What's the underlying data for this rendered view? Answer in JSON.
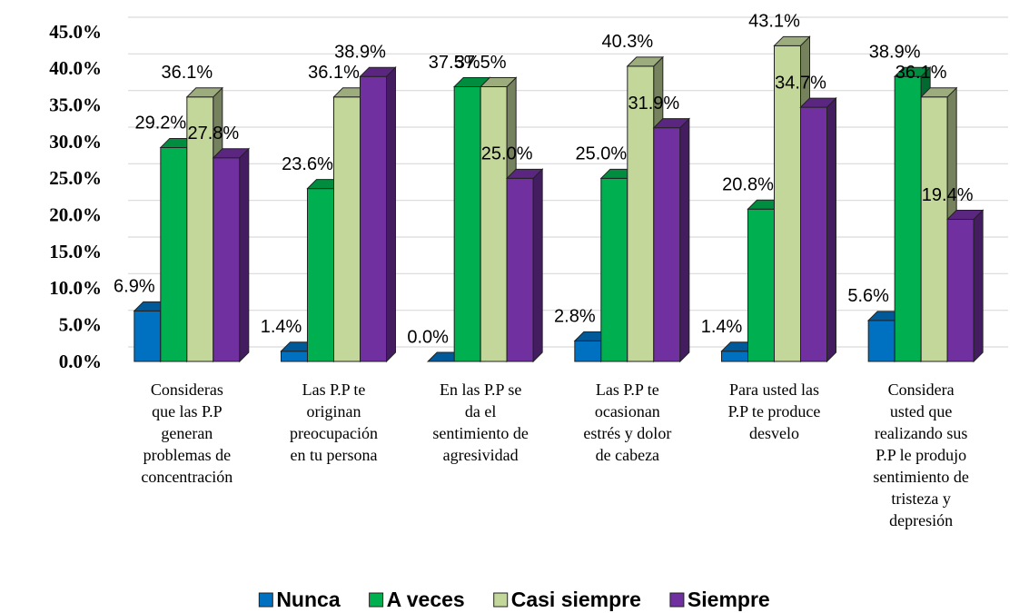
{
  "chart_data": {
    "type": "bar3d",
    "categories": [
      "Consideras\nque las P.P\ngeneran\nproblemas de\nconcentración",
      "Las P.P te\noriginan\npreocupación\nen tu persona",
      "En las P.P  se\nda el\nsentimiento de\nagresividad",
      "Las P.P te\nocasionan\nestrés y dolor\nde cabeza",
      "Para usted las\nP.P te produce\ndesvelo",
      "Considera\nusted que\nrealizando sus\nP.P  le produjo\nsentimiento de\ntristeza y\ndepresión"
    ],
    "series": [
      {
        "name": "Nunca",
        "color": "#0070c0",
        "values": [
          6.9,
          1.4,
          0.0,
          2.8,
          1.4,
          5.6
        ],
        "value_labels": [
          "6.9%",
          "1.4%",
          "0.0%",
          "2.8%",
          "1.4%",
          "5.6%"
        ]
      },
      {
        "name": "A veces",
        "color": "#00b050",
        "values": [
          29.2,
          23.6,
          37.5,
          25.0,
          20.8,
          38.9
        ],
        "value_labels": [
          "29.2%",
          "23.6%",
          "37.5%",
          "25.0%",
          "20.8%",
          "38.9%"
        ]
      },
      {
        "name": "Casi siempre",
        "color": "#c4d79b",
        "values": [
          36.1,
          36.1,
          37.5,
          40.3,
          43.1,
          36.1
        ],
        "value_labels": [
          "36.1%",
          "36.1%",
          "37.5%",
          "40.3%",
          "43.1%",
          "36.1%"
        ]
      },
      {
        "name": "Siempre",
        "color": "#7030a0",
        "values": [
          27.8,
          38.9,
          25.0,
          31.9,
          34.7,
          19.4
        ],
        "value_labels": [
          "27.8%",
          "38.9%",
          "25.0%",
          "31.9%",
          "34.7%",
          "19.4%"
        ]
      }
    ],
    "ylim": [
      0,
      45
    ],
    "yticks": [
      {
        "value": 0,
        "label": "0.0%"
      },
      {
        "value": 5,
        "label": "5.0%"
      },
      {
        "value": 10,
        "label": "10.0%"
      },
      {
        "value": 15,
        "label": "15.0%"
      },
      {
        "value": 20,
        "label": "20.0%"
      },
      {
        "value": 25,
        "label": "25.0%"
      },
      {
        "value": 30,
        "label": "30.0%"
      },
      {
        "value": 35,
        "label": "35.0%"
      },
      {
        "value": 40,
        "label": "40.0%"
      },
      {
        "value": 45,
        "label": "45.0%"
      }
    ],
    "grid": true,
    "legend": "bottom"
  }
}
